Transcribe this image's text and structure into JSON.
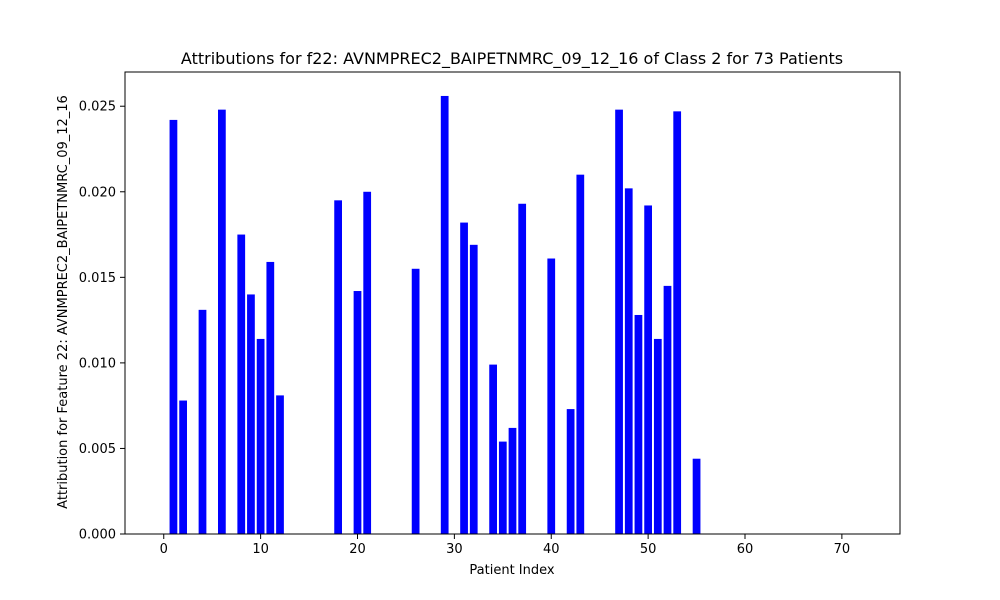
{
  "chart_data": {
    "type": "bar",
    "title": "Attributions for f22: AVNMPREC2_BAIPETNMRC_09_12_16 of Class 2 for 73 Patients",
    "xlabel": "Patient Index",
    "ylabel": "Attribution for Feature 22: AVNMPREC2_BAIPETNMRC_09_12_16",
    "xlim": [
      -4,
      76
    ],
    "ylim": [
      0,
      0.027
    ],
    "x_ticks": [
      0,
      10,
      20,
      30,
      40,
      50,
      60,
      70
    ],
    "y_ticks": [
      0.0,
      0.005,
      0.01,
      0.015,
      0.02,
      0.025
    ],
    "bar_color": "#0000ff",
    "grid": false,
    "series": [
      {
        "values": [
          {
            "x": 1,
            "y": 0.0242
          },
          {
            "x": 2,
            "y": 0.0078
          },
          {
            "x": 4,
            "y": 0.0131
          },
          {
            "x": 6,
            "y": 0.0248
          },
          {
            "x": 8,
            "y": 0.0175
          },
          {
            "x": 9,
            "y": 0.014
          },
          {
            "x": 10,
            "y": 0.0114
          },
          {
            "x": 11,
            "y": 0.0159
          },
          {
            "x": 12,
            "y": 0.0081
          },
          {
            "x": 18,
            "y": 0.0195
          },
          {
            "x": 20,
            "y": 0.0142
          },
          {
            "x": 21,
            "y": 0.02
          },
          {
            "x": 26,
            "y": 0.0155
          },
          {
            "x": 29,
            "y": 0.0256
          },
          {
            "x": 31,
            "y": 0.0182
          },
          {
            "x": 32,
            "y": 0.0169
          },
          {
            "x": 34,
            "y": 0.0099
          },
          {
            "x": 35,
            "y": 0.0054
          },
          {
            "x": 36,
            "y": 0.0062
          },
          {
            "x": 37,
            "y": 0.0193
          },
          {
            "x": 40,
            "y": 0.0161
          },
          {
            "x": 42,
            "y": 0.0073
          },
          {
            "x": 43,
            "y": 0.021
          },
          {
            "x": 47,
            "y": 0.0248
          },
          {
            "x": 48,
            "y": 0.0202
          },
          {
            "x": 49,
            "y": 0.0128
          },
          {
            "x": 50,
            "y": 0.0192
          },
          {
            "x": 51,
            "y": 0.0114
          },
          {
            "x": 52,
            "y": 0.0145
          },
          {
            "x": 53,
            "y": 0.0247
          },
          {
            "x": 55,
            "y": 0.0044
          }
        ]
      }
    ]
  }
}
